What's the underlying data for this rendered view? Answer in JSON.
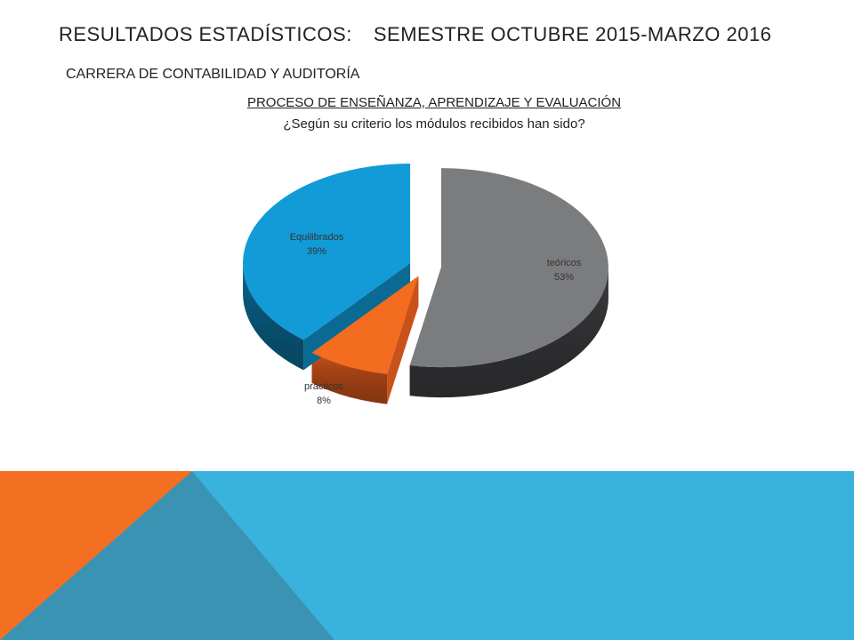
{
  "slide": {
    "title_left": "RESULTADOS ESTADÍSTICOS:",
    "title_right": "SEMESTRE OCTUBRE 2015-MARZO 2016",
    "subtitle": "CARRERA DE CONTABILIDAD Y AUDITORÍA",
    "heading": "PROCESO DE ENSEÑANZA, APRENDIZAJE Y EVALUACIÓN",
    "question": "¿Según su criterio los módulos recibidos  han sido?"
  },
  "colors": {
    "decor_blue": "#3AB2DE",
    "decor_orange": "#F36F21",
    "decor_steel": "#3A93B3"
  },
  "chart_data": {
    "type": "pie",
    "style": "3d-exploded",
    "title": "",
    "slices": [
      {
        "label": "teóricos",
        "value": 53,
        "display": "53%",
        "color": "#7B7C7E",
        "side_color": "#3C3D3F"
      },
      {
        "label": "prácticos",
        "value": 8,
        "display": "8%",
        "color": "#F36C20",
        "side_color": "#C9511A"
      },
      {
        "label": "Equilibrados",
        "value": 39,
        "display": "39%",
        "color": "#129BD6",
        "side_color": "#0A6A93"
      }
    ]
  }
}
